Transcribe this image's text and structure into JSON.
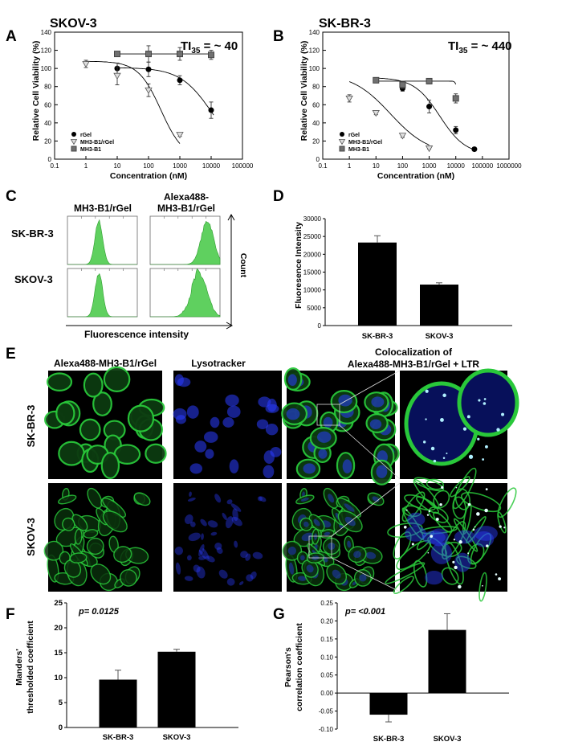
{
  "panel_letters": {
    "a": "A",
    "b": "B",
    "c": "C",
    "d": "D",
    "e": "E",
    "f": "F",
    "g": "G"
  },
  "colors": {
    "bar": "#000000",
    "histogram": "#5fd05f",
    "histogram_edge": "#2e9e2e",
    "micro_bg": "#000000",
    "membrane": "#29c83a",
    "lyso": "#2a3cff"
  },
  "panelA": {
    "title": "SKOV-3",
    "ti_prefix": "TI",
    "ti_sub": "35",
    "ti_suffix": " = ~ 40",
    "ylabel": "Relative Cell Viability (%)",
    "xlabel": "Concentration (nM)",
    "xticks": [
      "0.1",
      "1",
      "10",
      "100",
      "1000",
      "10000",
      "100000"
    ],
    "yticks": [
      "0",
      "20",
      "40",
      "60",
      "80",
      "100",
      "120",
      "140"
    ],
    "legend": [
      "rGel",
      "MH3-B1/rGel",
      "MH3-B1"
    ]
  },
  "panelB": {
    "title": "SK-BR-3",
    "ti_prefix": "TI",
    "ti_sub": "35",
    "ti_suffix": " = ~ 440",
    "ylabel": "Relative Cell Viability (%)",
    "xlabel": "Concentration (nM)",
    "xticks": [
      "0.1",
      "1",
      "10",
      "100",
      "1000",
      "10000",
      "100000",
      "1000000"
    ],
    "yticks": [
      "0",
      "20",
      "40",
      "60",
      "80",
      "100",
      "120",
      "140"
    ],
    "legend": [
      "rGel",
      "MH3-B1/rGel",
      "MH3-B1"
    ]
  },
  "panelC": {
    "col1": "MH3-B1/rGel",
    "col2_line1": "Alexa488-",
    "col2_line2": "MH3-B1/rGel",
    "row1": "SK-BR-3",
    "row2": "SKOV-3",
    "count": "Count",
    "xlabel": "Fluorescence intensity"
  },
  "panelE": {
    "col1": "Alexa488-MH3-B1/rGel",
    "col2": "Lysotracker",
    "col3_line1": "Colocalization of",
    "col3_line2": "Alexa488-MH3-B1/rGel + LTR",
    "row1": "SK-BR-3",
    "row2": "SKOV-3"
  },
  "panelF": {
    "pvalue": "p= 0.0125",
    "ylabel_line1": "Manders'",
    "ylabel_line2": "thresholded coefficient"
  },
  "panelG": {
    "pvalue": "p= <0.001",
    "ylabel_line1": "Pearson's",
    "ylabel_line2": "correlation coefficient"
  },
  "chart_data": [
    {
      "id": "A",
      "type": "scatter",
      "title": "SKOV-3",
      "xlabel": "Concentration (nM)",
      "ylabel": "Relative Cell Viability (%)",
      "xscale": "log",
      "xlim": [
        0.1,
        100000
      ],
      "ylim": [
        0,
        140
      ],
      "legend_position": "bottom-left",
      "series": [
        {
          "name": "rGel",
          "marker": "circle",
          "x": [
            10,
            100,
            1000,
            10000
          ],
          "y": [
            100,
            99,
            87,
            54
          ],
          "err": [
            6,
            8,
            5,
            9
          ]
        },
        {
          "name": "MH3-B1/rGel",
          "marker": "triangle-down",
          "x": [
            1,
            10,
            100,
            1000
          ],
          "y": [
            105,
            92,
            76,
            27
          ],
          "err": [
            4,
            10,
            7,
            2
          ]
        },
        {
          "name": "MH3-B1",
          "marker": "square",
          "x": [
            10,
            100,
            1000,
            10000
          ],
          "y": [
            116,
            116,
            116,
            115
          ],
          "err": [
            2,
            9,
            7,
            5
          ]
        }
      ]
    },
    {
      "id": "B",
      "type": "scatter",
      "title": "SK-BR-3",
      "xlabel": "Concentration (nM)",
      "ylabel": "Relative Cell Viability (%)",
      "xscale": "log",
      "xlim": [
        0.1,
        1000000
      ],
      "ylim": [
        0,
        140
      ],
      "legend_position": "bottom-left",
      "series": [
        {
          "name": "rGel",
          "marker": "circle",
          "x": [
            10,
            100,
            1000,
            10000,
            50000
          ],
          "y": [
            87,
            78,
            58,
            32,
            11
          ],
          "err": [
            2,
            3,
            7,
            4,
            2
          ]
        },
        {
          "name": "MH3-B1/rGel",
          "marker": "triangle-down",
          "x": [
            1,
            10,
            100,
            1000
          ],
          "y": [
            67,
            51,
            26,
            12
          ],
          "err": [
            4,
            2,
            2,
            1
          ]
        },
        {
          "name": "MH3-B1",
          "marker": "square",
          "x": [
            10,
            100,
            1000,
            10000
          ],
          "y": [
            87,
            82,
            86,
            67
          ],
          "err": [
            2,
            4,
            3,
            5
          ]
        }
      ]
    },
    {
      "id": "D",
      "type": "bar",
      "ylabel": "Fluoresence Intensity",
      "categories": [
        "SK-BR-3",
        "SKOV-3"
      ],
      "values": [
        23300,
        11500
      ],
      "err": [
        1900,
        500
      ],
      "ylim": [
        0,
        30000
      ],
      "yticks": [
        "0",
        "5000",
        "10000",
        "15000",
        "20000",
        "25000",
        "30000"
      ]
    },
    {
      "id": "F",
      "type": "bar",
      "ylabel": "Manders' thresholded coefficient",
      "categories": [
        "SK-BR-3",
        "SKOV-3"
      ],
      "values": [
        9.6,
        15.2
      ],
      "err": [
        1.9,
        0.5
      ],
      "ylim": [
        0,
        25
      ],
      "yticks": [
        "0",
        "5",
        "10",
        "15",
        "20",
        "25"
      ]
    },
    {
      "id": "G",
      "type": "bar",
      "ylabel": "Pearson's correlation coefficient",
      "categories": [
        "SK-BR-3",
        "SKOV-3"
      ],
      "values": [
        -0.06,
        0.175
      ],
      "err": [
        0.02,
        0.045
      ],
      "ylim": [
        -0.1,
        0.25
      ],
      "yticks": [
        "-0.10",
        "-0.05",
        "0.00",
        "0.05",
        "0.10",
        "0.15",
        "0.20",
        "0.25"
      ]
    }
  ]
}
